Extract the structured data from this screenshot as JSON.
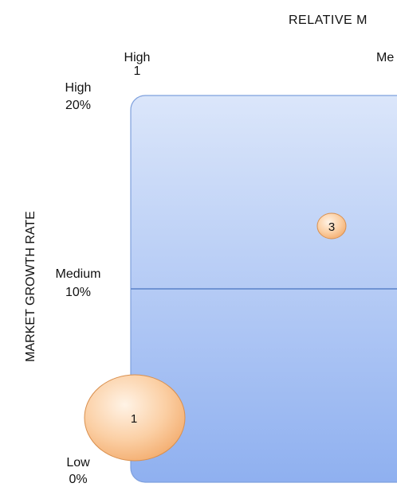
{
  "diagram": {
    "x_axis_title": "RELATIVE M",
    "x_axis_title_partial_next": "M",
    "x_ticks": [
      {
        "label": "High",
        "value": "1"
      },
      {
        "label": "Me",
        "value": ""
      }
    ],
    "y_axis_title": "MARKET GROWTH RATE",
    "y_ticks": [
      {
        "label": "High",
        "value": "20%"
      },
      {
        "label": "Medium",
        "value": "10%"
      },
      {
        "label": "Low",
        "value": "0%"
      }
    ],
    "bubbles": [
      {
        "label": "3"
      },
      {
        "label": "1"
      }
    ],
    "colors": {
      "quadrant_top": "#dbe6fa",
      "quadrant_bottom": "#8fb0f0",
      "quadrant_border": "#7ea0dd",
      "divider": "#5a82c8",
      "bubble_fill_light": "#fde7d2",
      "bubble_fill_dark": "#f6b277",
      "bubble_border": "#d9904f"
    }
  }
}
